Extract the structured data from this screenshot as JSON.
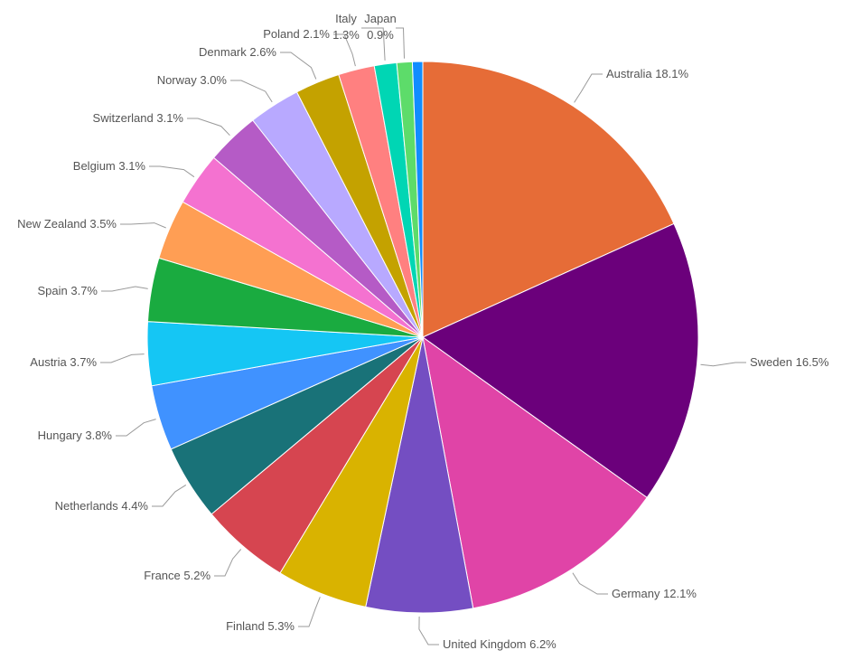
{
  "chart_data": {
    "type": "pie",
    "title": "",
    "slices": [
      {
        "name": "Australia",
        "label": "Australia 18.1%",
        "value": 18.1,
        "color": "#E66C37"
      },
      {
        "name": "Sweden",
        "label": "Sweden 16.5%",
        "value": 16.5,
        "color": "#6B007B"
      },
      {
        "name": "Germany",
        "label": "Germany 12.1%",
        "value": 12.1,
        "color": "#E044A7"
      },
      {
        "name": "United Kingdom",
        "label": "United Kingdom 6.2%",
        "value": 6.2,
        "color": "#744EC2"
      },
      {
        "name": "Finland",
        "label": "Finland 5.3%",
        "value": 5.3,
        "color": "#D9B300"
      },
      {
        "name": "France",
        "label": "France 5.2%",
        "value": 5.2,
        "color": "#D64550"
      },
      {
        "name": "Netherlands",
        "label": "Netherlands 4.4%",
        "value": 4.4,
        "color": "#197278"
      },
      {
        "name": "Hungary",
        "label": "Hungary 3.8%",
        "value": 3.8,
        "color": "#4092FF"
      },
      {
        "name": "Austria",
        "label": "Austria 3.7%",
        "value": 3.7,
        "color": "#15C6F4"
      },
      {
        "name": "Spain",
        "label": "Spain 3.7%",
        "value": 3.7,
        "color": "#1AAB40"
      },
      {
        "name": "New Zealand",
        "label": "New Zealand 3.5%",
        "value": 3.5,
        "color": "#FF9E54"
      },
      {
        "name": "Belgium",
        "label": "Belgium 3.1%",
        "value": 3.1,
        "color": "#F472D0"
      },
      {
        "name": "Switzerland",
        "label": "Switzerland 3.1%",
        "value": 3.1,
        "color": "#B55BC6"
      },
      {
        "name": "Norway",
        "label": "Norway 3.0%",
        "value": 3.0,
        "color": "#B8A9FF"
      },
      {
        "name": "Denmark",
        "label": "Denmark 2.6%",
        "value": 2.6,
        "color": "#C4A200"
      },
      {
        "name": "Poland",
        "label": "Poland 2.1%",
        "value": 2.1,
        "color": "#FF8080"
      },
      {
        "name": "Italy",
        "label": "Italy 1.3%",
        "label_lines": [
          "Italy",
          "1.3%"
        ],
        "value": 1.3,
        "color": "#00D6B4"
      },
      {
        "name": "Japan",
        "label": "Japan 0.9%",
        "label_lines": [
          "Japan",
          "0.9%"
        ],
        "value": 0.9,
        "color": "#5DDC6A"
      },
      {
        "name": "",
        "label": "",
        "value": 0.6,
        "color": "#118DFF"
      }
    ]
  }
}
